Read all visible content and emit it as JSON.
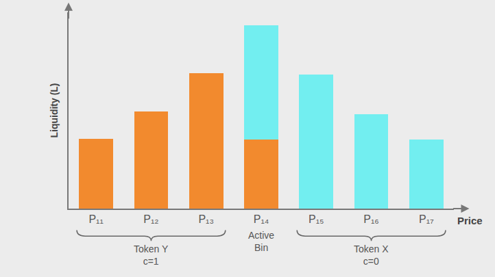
{
  "chart_data": {
    "type": "bar",
    "stacked": true,
    "y_label": "Liquidity (L)",
    "x_label": "Price",
    "categories": [
      "P₁₁",
      "P₁₂",
      "P₁₃",
      "P₁₄",
      "P₁₅",
      "P₁₆",
      "P₁₇"
    ],
    "series": [
      {
        "color": "#f28a2e",
        "values": [
          96,
          134,
          186,
          95,
          0,
          0,
          0
        ]
      },
      {
        "color": "#72eef0",
        "values": [
          0,
          0,
          0,
          157,
          184,
          130,
          95
        ]
      }
    ],
    "groups": [
      {
        "label": "Token Y",
        "note": "c=1",
        "first": 0,
        "last": 2
      },
      {
        "label": "Active Bin",
        "first": 3,
        "last": 3
      },
      {
        "label": "Token X",
        "note": "c=0",
        "first": 4,
        "last": 6
      }
    ],
    "ylim": [
      0,
      270
    ],
    "yticks": [],
    "tick_labels": "x",
    "grid": false
  }
}
